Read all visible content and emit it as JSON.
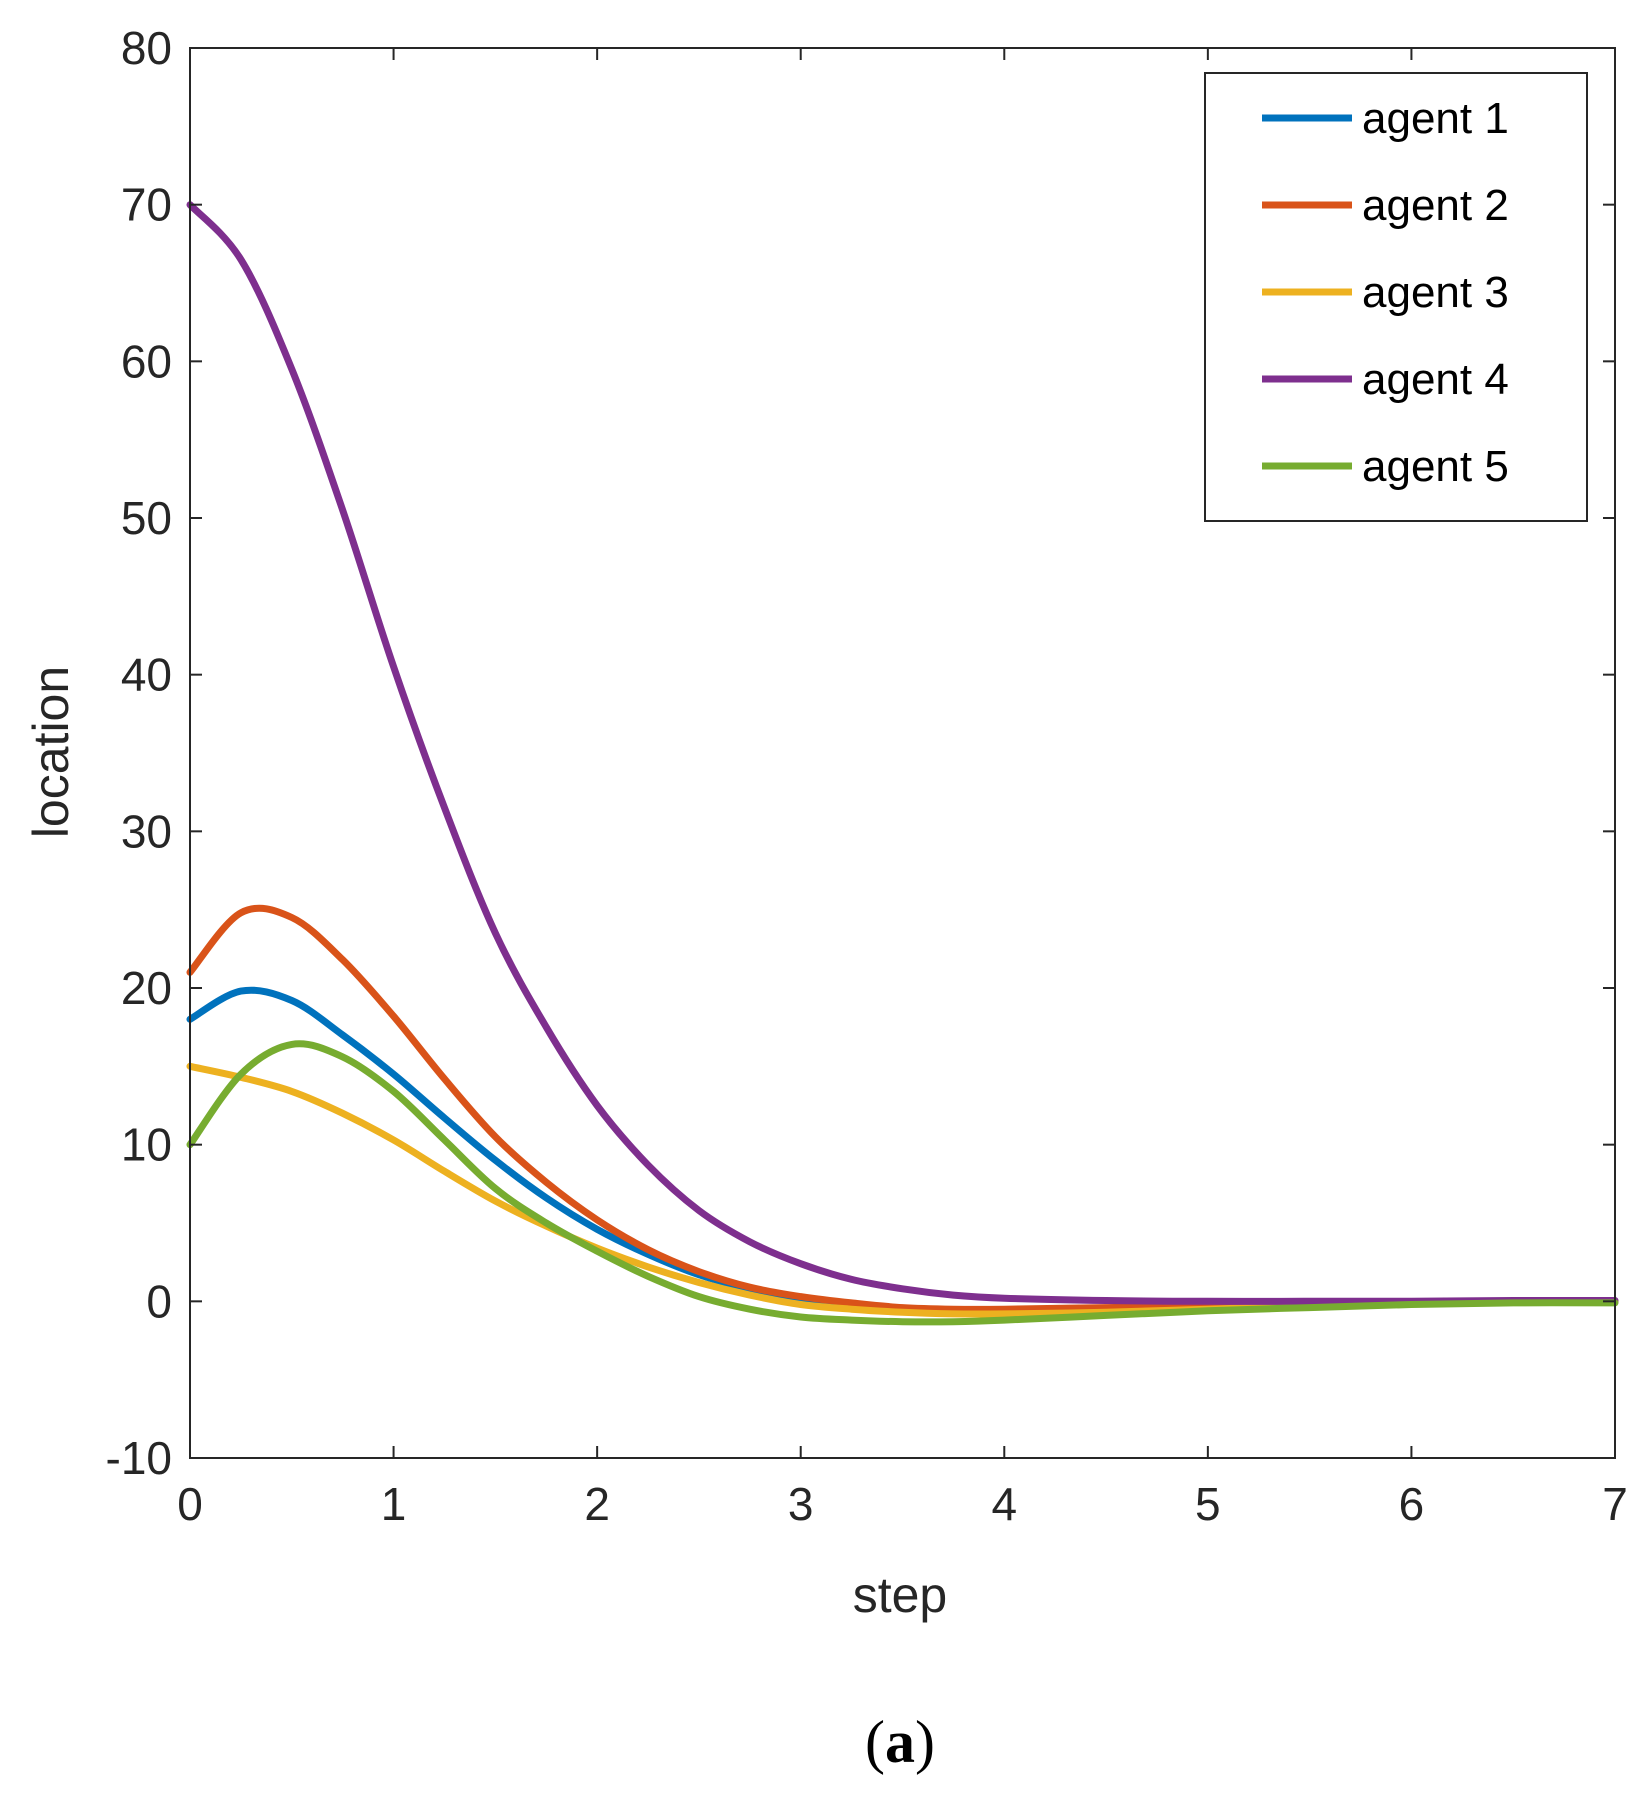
{
  "chart_data": {
    "type": "line",
    "title": "",
    "xlabel": "step",
    "ylabel": "location",
    "xlim": [
      0,
      7
    ],
    "ylim": [
      -10,
      80
    ],
    "xticks": [
      "0",
      "1",
      "2",
      "3",
      "4",
      "5",
      "6",
      "7"
    ],
    "yticks": [
      "-10",
      "0",
      "10",
      "20",
      "30",
      "40",
      "50",
      "60",
      "70",
      "80"
    ],
    "grid": false,
    "legend_position": "top-right",
    "x": [
      0,
      0.25,
      0.5,
      0.75,
      1,
      1.25,
      1.5,
      1.75,
      2,
      2.25,
      2.5,
      2.75,
      3,
      3.25,
      3.5,
      3.75,
      4,
      4.5,
      5,
      5.5,
      6,
      6.5,
      7
    ],
    "series": [
      {
        "name": "agent 1",
        "color": "#0072BD",
        "values": [
          18,
          19.8,
          19.2,
          17,
          14.5,
          11.7,
          9,
          6.6,
          4.6,
          3,
          1.7,
          0.8,
          0.2,
          -0.2,
          -0.5,
          -0.6,
          -0.6,
          -0.5,
          -0.3,
          -0.15,
          -0.05,
          0,
          0
        ]
      },
      {
        "name": "agent 2",
        "color": "#D95319",
        "values": [
          21,
          24.8,
          24.5,
          21.8,
          18.2,
          14.2,
          10.5,
          7.6,
          5.2,
          3.3,
          1.9,
          0.9,
          0.3,
          -0.1,
          -0.4,
          -0.5,
          -0.5,
          -0.4,
          -0.3,
          -0.15,
          -0.05,
          0,
          0
        ]
      },
      {
        "name": "agent 3",
        "color": "#EDB120",
        "values": [
          15,
          14.3,
          13.4,
          12,
          10.3,
          8.3,
          6.4,
          4.8,
          3.4,
          2.2,
          1.2,
          0.4,
          -0.2,
          -0.5,
          -0.7,
          -0.8,
          -0.8,
          -0.7,
          -0.5,
          -0.3,
          -0.15,
          -0.05,
          0
        ]
      },
      {
        "name": "agent 4",
        "color": "#7E2F8E",
        "values": [
          70,
          66.5,
          59.5,
          50.5,
          40.5,
          31.5,
          23.5,
          17.5,
          12.5,
          8.7,
          5.8,
          3.8,
          2.4,
          1.4,
          0.8,
          0.4,
          0.2,
          0.05,
          0,
          0,
          0,
          0.05,
          0.05
        ]
      },
      {
        "name": "agent 5",
        "color": "#77AC30",
        "values": [
          10,
          14.5,
          16.4,
          15.6,
          13.4,
          10.3,
          7.2,
          5,
          3.2,
          1.6,
          0.3,
          -0.5,
          -1,
          -1.2,
          -1.3,
          -1.3,
          -1.2,
          -0.9,
          -0.6,
          -0.4,
          -0.2,
          -0.1,
          -0.1
        ]
      }
    ]
  },
  "caption": {
    "open": "(",
    "letter": "a",
    "close": ")"
  }
}
